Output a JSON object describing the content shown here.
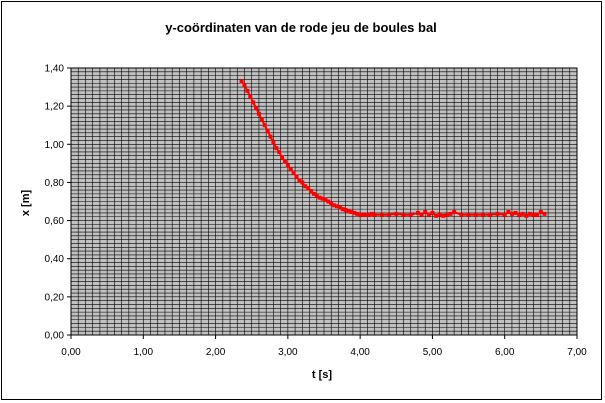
{
  "chart_data": {
    "type": "line",
    "title": "y-coördinaten van de rode jeu de boules bal",
    "xlabel": "t [s]",
    "ylabel": "x [m]",
    "xlim": [
      0,
      7
    ],
    "ylim": [
      0,
      1.4
    ],
    "x_ticks": [
      "0,00",
      "1,00",
      "2,00",
      "3,00",
      "4,00",
      "5,00",
      "6,00",
      "7,00"
    ],
    "y_ticks": [
      "0,00",
      "0,20",
      "0,40",
      "0,60",
      "0,80",
      "1,00",
      "1,20",
      "1,40"
    ],
    "grid": true,
    "legend": "none",
    "plot_background": "#C0C0C0",
    "grid_color": "#000000",
    "series_color": "#FF0000",
    "series": [
      {
        "x": [
          2.36,
          2.4,
          2.44,
          2.48,
          2.52,
          2.56,
          2.6,
          2.64,
          2.68,
          2.72,
          2.76,
          2.8,
          2.84,
          2.88,
          2.92,
          2.96,
          3.0,
          3.04,
          3.08,
          3.12,
          3.16,
          3.2,
          3.24,
          3.28,
          3.32,
          3.36,
          3.4,
          3.44,
          3.48,
          3.52,
          3.56,
          3.6,
          3.64,
          3.68,
          3.72,
          3.76,
          3.8,
          3.84,
          3.88,
          3.92,
          3.96,
          4.0,
          4.04,
          4.08,
          4.12,
          4.16,
          4.2,
          4.3,
          4.4,
          4.5,
          4.6,
          4.7,
          4.8,
          4.85,
          4.9,
          4.95,
          5.0,
          5.05,
          5.1,
          5.15,
          5.2,
          5.25,
          5.3,
          5.4,
          5.5,
          5.6,
          5.7,
          5.8,
          5.9,
          6.0,
          6.05,
          6.1,
          6.15,
          6.2,
          6.25,
          6.3,
          6.35,
          6.4,
          6.45,
          6.5,
          6.55
        ],
        "y": [
          1.33,
          1.31,
          1.28,
          1.25,
          1.22,
          1.19,
          1.16,
          1.13,
          1.1,
          1.07,
          1.04,
          1.01,
          0.98,
          0.96,
          0.93,
          0.91,
          0.89,
          0.87,
          0.85,
          0.83,
          0.81,
          0.8,
          0.78,
          0.77,
          0.755,
          0.74,
          0.73,
          0.72,
          0.715,
          0.71,
          0.7,
          0.69,
          0.68,
          0.675,
          0.67,
          0.66,
          0.655,
          0.65,
          0.645,
          0.64,
          0.635,
          0.63,
          0.63,
          0.63,
          0.63,
          0.635,
          0.63,
          0.63,
          0.63,
          0.635,
          0.63,
          0.63,
          0.64,
          0.63,
          0.645,
          0.63,
          0.64,
          0.625,
          0.63,
          0.625,
          0.63,
          0.635,
          0.645,
          0.63,
          0.63,
          0.63,
          0.63,
          0.63,
          0.635,
          0.63,
          0.645,
          0.635,
          0.64,
          0.63,
          0.635,
          0.625,
          0.635,
          0.63,
          0.63,
          0.645,
          0.635
        ]
      }
    ]
  }
}
